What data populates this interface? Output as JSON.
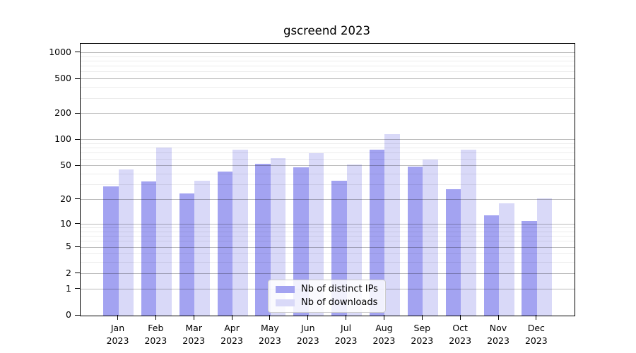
{
  "title": "gscreend 2023",
  "chart_data": {
    "type": "bar",
    "title": "gscreend 2023",
    "categories": [
      "Jan",
      "Feb",
      "Mar",
      "Apr",
      "May",
      "Jun",
      "Jul",
      "Aug",
      "Sep",
      "Oct",
      "Nov",
      "Dec"
    ],
    "category_year": "2023",
    "series": [
      {
        "name": "Nb of distinct IPs",
        "color": "#a3a3f1",
        "values": [
          29,
          33,
          24,
          43,
          53,
          48,
          34,
          78,
          49,
          27,
          13,
          11
        ]
      },
      {
        "name": "Nb of downloads",
        "color": "#d9d9f8",
        "values": [
          46,
          82,
          34,
          78,
          62,
          70,
          52,
          117,
          60,
          78,
          18,
          21
        ]
      }
    ],
    "yscale": "log10(1+x)",
    "ylim": [
      0,
      1270
    ],
    "yticks": [
      0,
      1,
      2,
      5,
      10,
      20,
      50,
      100,
      200,
      500,
      1000
    ],
    "yticks_minor": [
      3,
      4,
      6,
      7,
      8,
      9,
      30,
      40,
      60,
      70,
      80,
      90,
      300,
      400,
      600,
      700,
      800,
      900
    ],
    "xlabel": "",
    "ylabel": "",
    "legend_position": "lower center",
    "grid": "major and minor horizontal lines drawn above bars",
    "colors": {
      "grid_major": "#b0b0b0",
      "grid_minor": "#e8e8e8",
      "spine": "#000000",
      "background": "#ffffff",
      "text": "#000000"
    }
  }
}
